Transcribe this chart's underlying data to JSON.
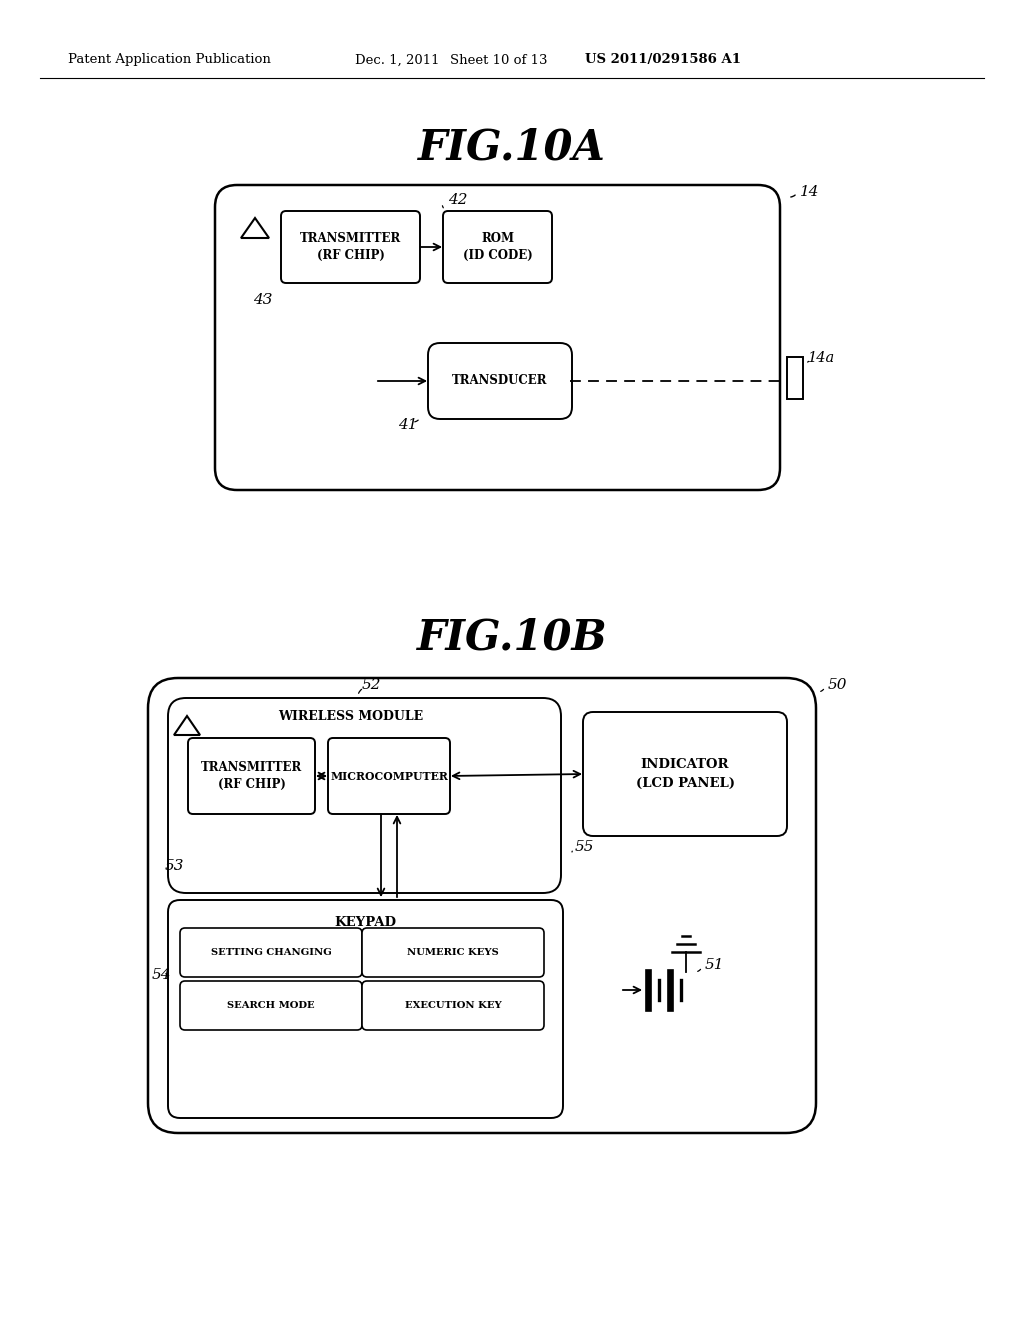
{
  "bg_color": "#ffffff",
  "header_text": "Patent Application Publication",
  "header_date": "Dec. 1, 2011",
  "header_sheet": "Sheet 10 of 13",
  "header_patent": "US 2011/0291586 A1",
  "fig10a_title": "FIG.10A",
  "fig10b_title": "FIG.10B"
}
